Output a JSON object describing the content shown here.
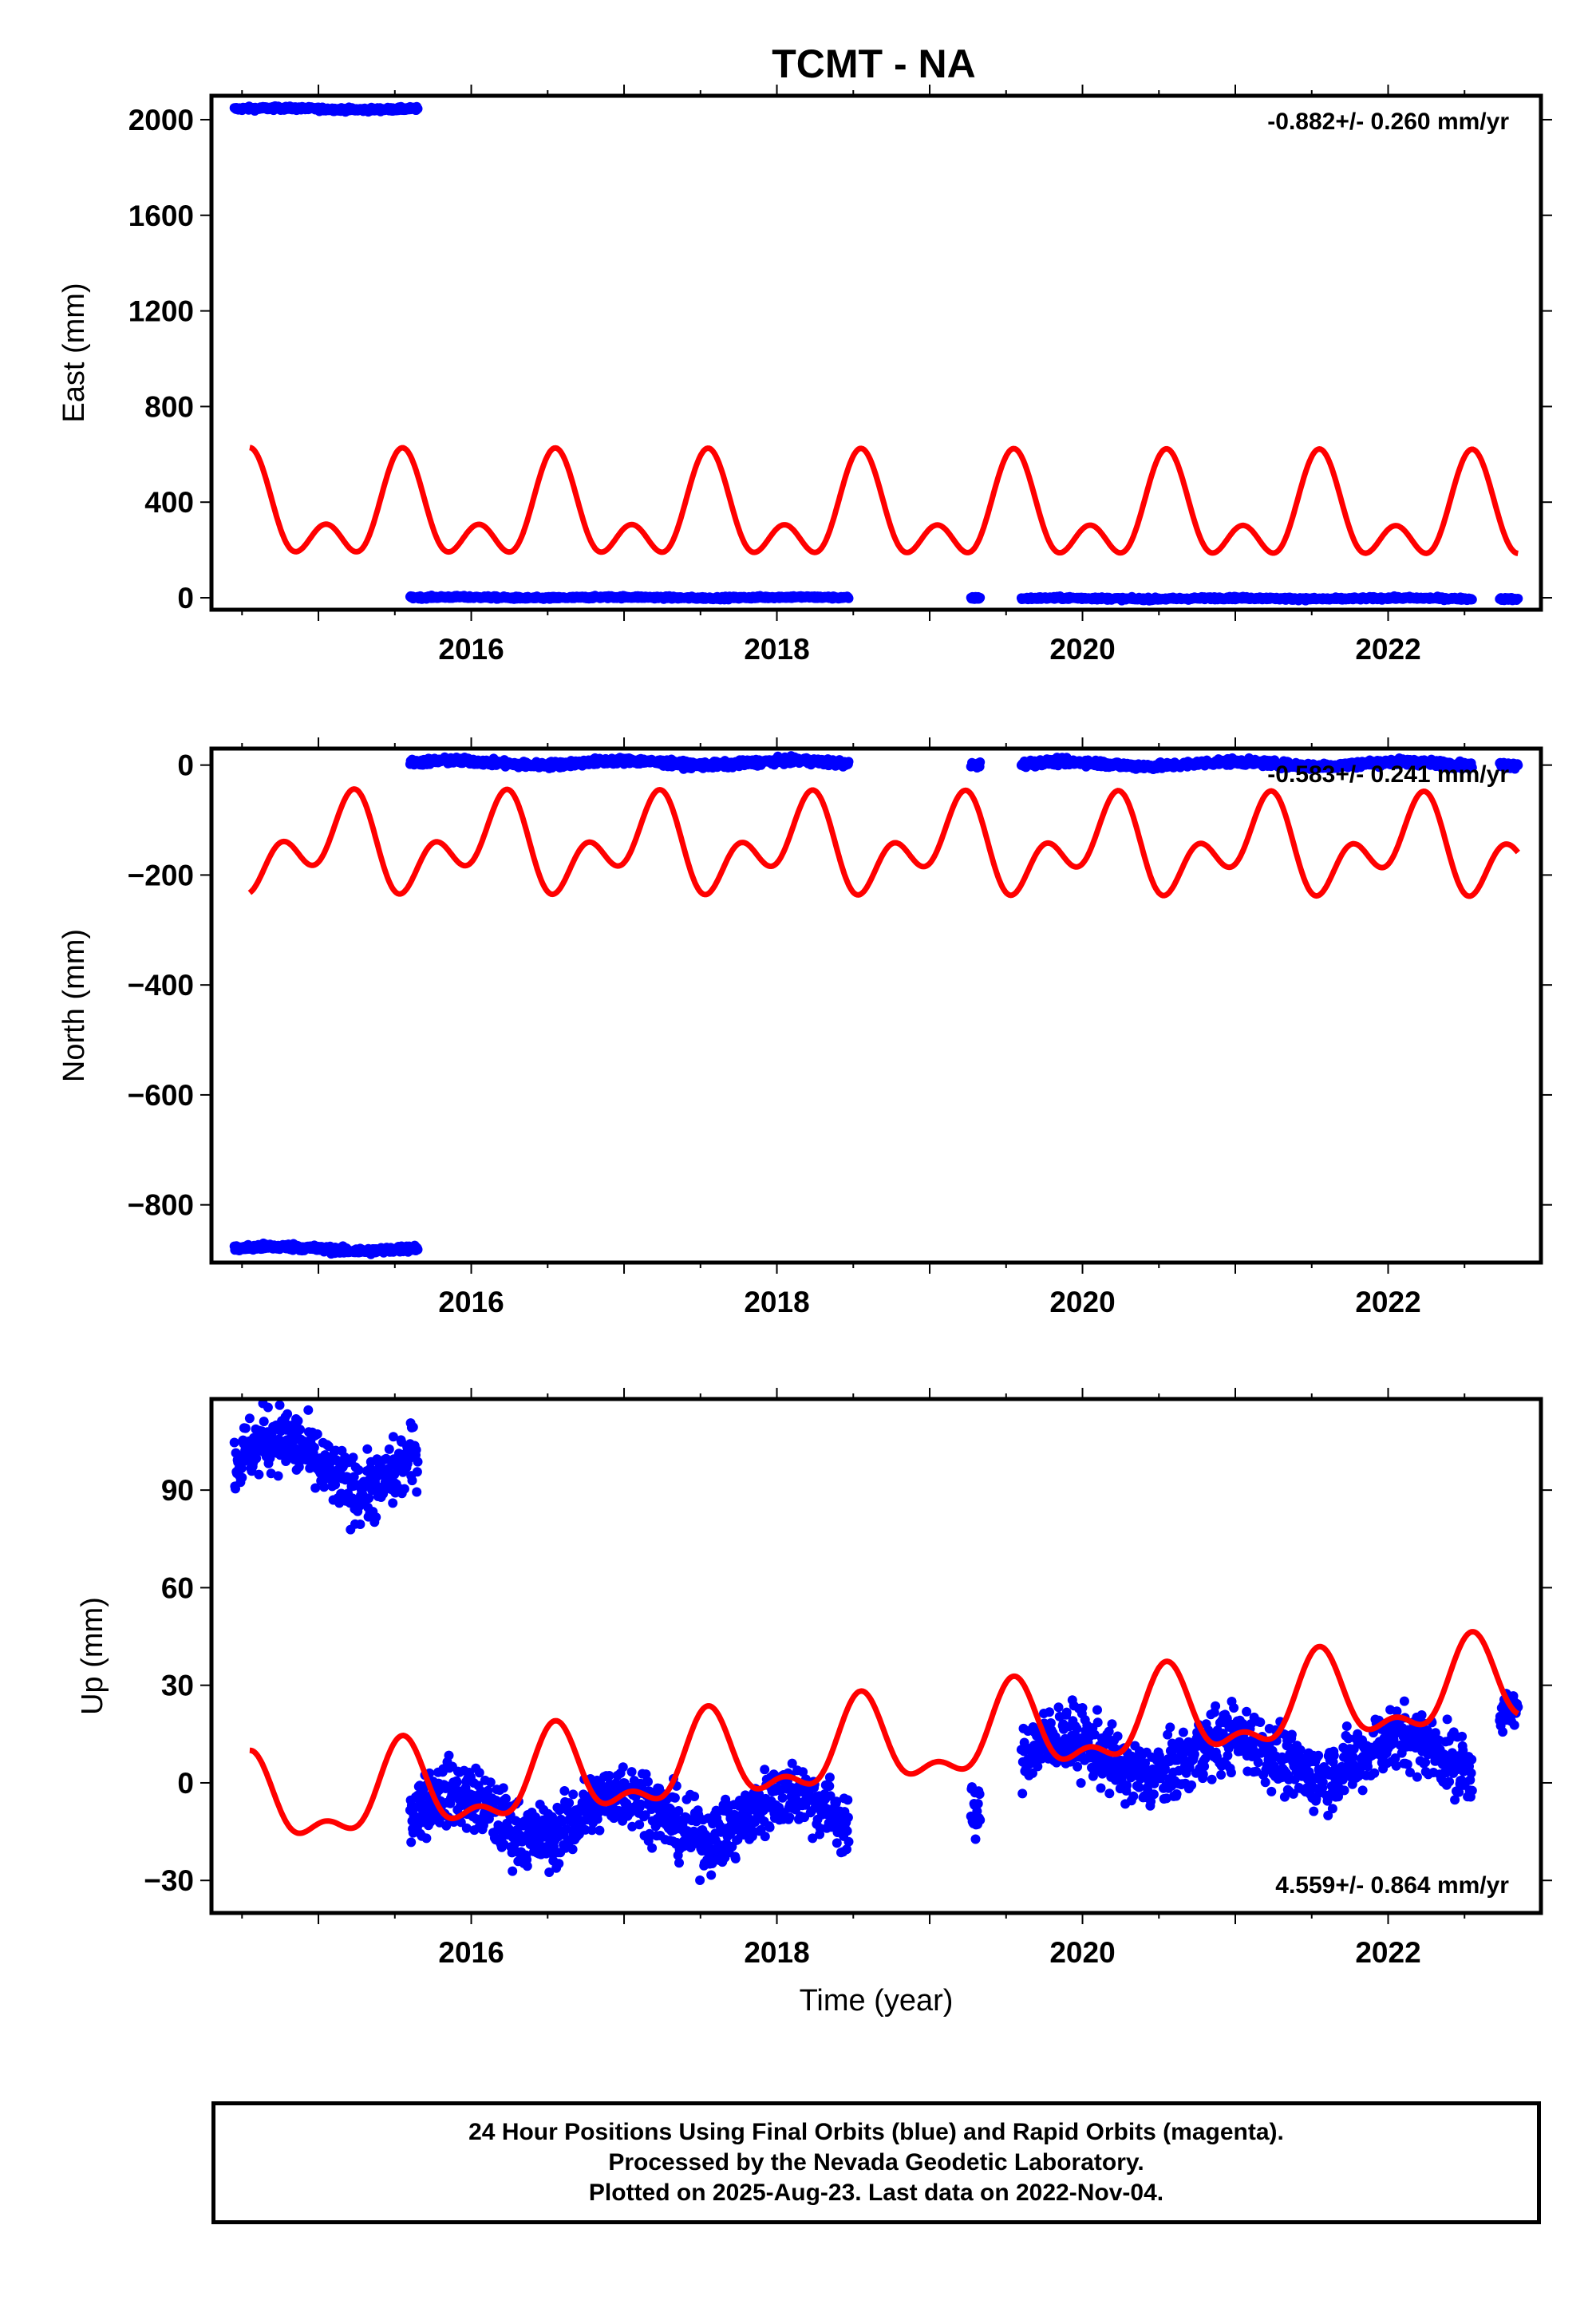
{
  "title": "TCMT - NA",
  "colors": {
    "data": "#0000ff",
    "model": "#ff0000",
    "axis": "#000000"
  },
  "chart_data": [
    {
      "type": "scatter",
      "component": "east",
      "ylabel": "East (mm)",
      "xlim": [
        2014.3,
        2023.0
      ],
      "ylim": [
        -50,
        2100
      ],
      "yticks": [
        0,
        400,
        800,
        1200,
        1600,
        2000
      ],
      "xticks": [
        2016,
        2018,
        2020,
        2022
      ],
      "rate_text": "-0.882+/- 0.260 mm/yr",
      "rate_position": "top-right",
      "segments": [
        {
          "start": 2014.45,
          "end": 2015.65,
          "level": 2045,
          "amplitude": 3,
          "noise": 4
        },
        {
          "start": 2015.6,
          "end": 2018.47,
          "level": 1,
          "amplitude": 2,
          "noise": 3
        },
        {
          "start": 2019.27,
          "end": 2019.33,
          "level": -1,
          "amplitude": 0,
          "noise": 3
        },
        {
          "start": 2019.6,
          "end": 2022.55,
          "level": -3,
          "amplitude": 2,
          "noise": 3
        },
        {
          "start": 2022.73,
          "end": 2022.85,
          "level": -5,
          "amplitude": 0,
          "noise": 3
        }
      ],
      "model": {
        "mean": 340,
        "trend": -0.882,
        "annual_amp": 160,
        "annual_peak": 0.55,
        "semiannual_amp": 125,
        "semiannual_peak": 0.55
      }
    },
    {
      "type": "scatter",
      "component": "north",
      "ylabel": "North (mm)",
      "xlim": [
        2014.3,
        2023.0
      ],
      "ylim": [
        -905,
        30
      ],
      "yticks": [
        -800,
        -600,
        -400,
        -200,
        0
      ],
      "xticks": [
        2016,
        2018,
        2020,
        2022
      ],
      "rate_text": "-0.583+/- 0.241 mm/yr",
      "rate_position": "top-right",
      "segments": [
        {
          "start": 2014.45,
          "end": 2015.65,
          "level": -880,
          "amplitude": 4,
          "noise": 3
        },
        {
          "start": 2015.6,
          "end": 2018.47,
          "level": 4,
          "amplitude": 4,
          "noise": 3
        },
        {
          "start": 2019.27,
          "end": 2019.33,
          "level": 0,
          "amplitude": 0,
          "noise": 3
        },
        {
          "start": 2019.6,
          "end": 2022.55,
          "level": 2,
          "amplitude": 4,
          "noise": 3
        },
        {
          "start": 2022.73,
          "end": 2022.85,
          "level": 0,
          "amplitude": 0,
          "noise": 3
        }
      ],
      "model": {
        "mean": -150,
        "trend": -0.583,
        "annual_amp": 55,
        "annual_peak": 0.17,
        "semiannual_amp": 55,
        "semiannual_peak": 0.25
      }
    },
    {
      "type": "scatter",
      "component": "up",
      "ylabel": "Up (mm)",
      "xlabel": "Time (year)",
      "xlim": [
        2014.3,
        2023.0
      ],
      "ylim": [
        -40,
        118
      ],
      "yticks": [
        -30,
        0,
        30,
        60,
        90
      ],
      "xticks": [
        2016,
        2018,
        2020,
        2022
      ],
      "rate_text": "4.559+/- 0.864 mm/yr",
      "rate_position": "bottom-right",
      "segments": [
        {
          "start": 2014.45,
          "end": 2015.65,
          "level": 98,
          "amplitude": 8,
          "noise": 5
        },
        {
          "start": 2015.6,
          "end": 2018.47,
          "level": -10,
          "amplitude": 7,
          "noise": 5
        },
        {
          "start": 2019.27,
          "end": 2019.33,
          "level": -10,
          "amplitude": 0,
          "noise": 4
        },
        {
          "start": 2019.6,
          "end": 2022.55,
          "level": 8,
          "amplitude": 6,
          "noise": 5
        },
        {
          "start": 2022.73,
          "end": 2022.85,
          "level": 22,
          "amplitude": 0,
          "noise": 3
        }
      ],
      "model": {
        "mean": 10,
        "trend": 4.559,
        "annual_amp": 12,
        "annual_peak": 0.55,
        "semiannual_amp": 6,
        "semiannual_peak": 0.05
      }
    }
  ],
  "footer": {
    "line1": "24 Hour Positions Using Final Orbits (blue) and Rapid Orbits (magenta).",
    "line2": "Processed by the Nevada Geodetic Laboratory.",
    "line3": "Plotted on 2025-Aug-23. Last data on 2022-Nov-04."
  }
}
